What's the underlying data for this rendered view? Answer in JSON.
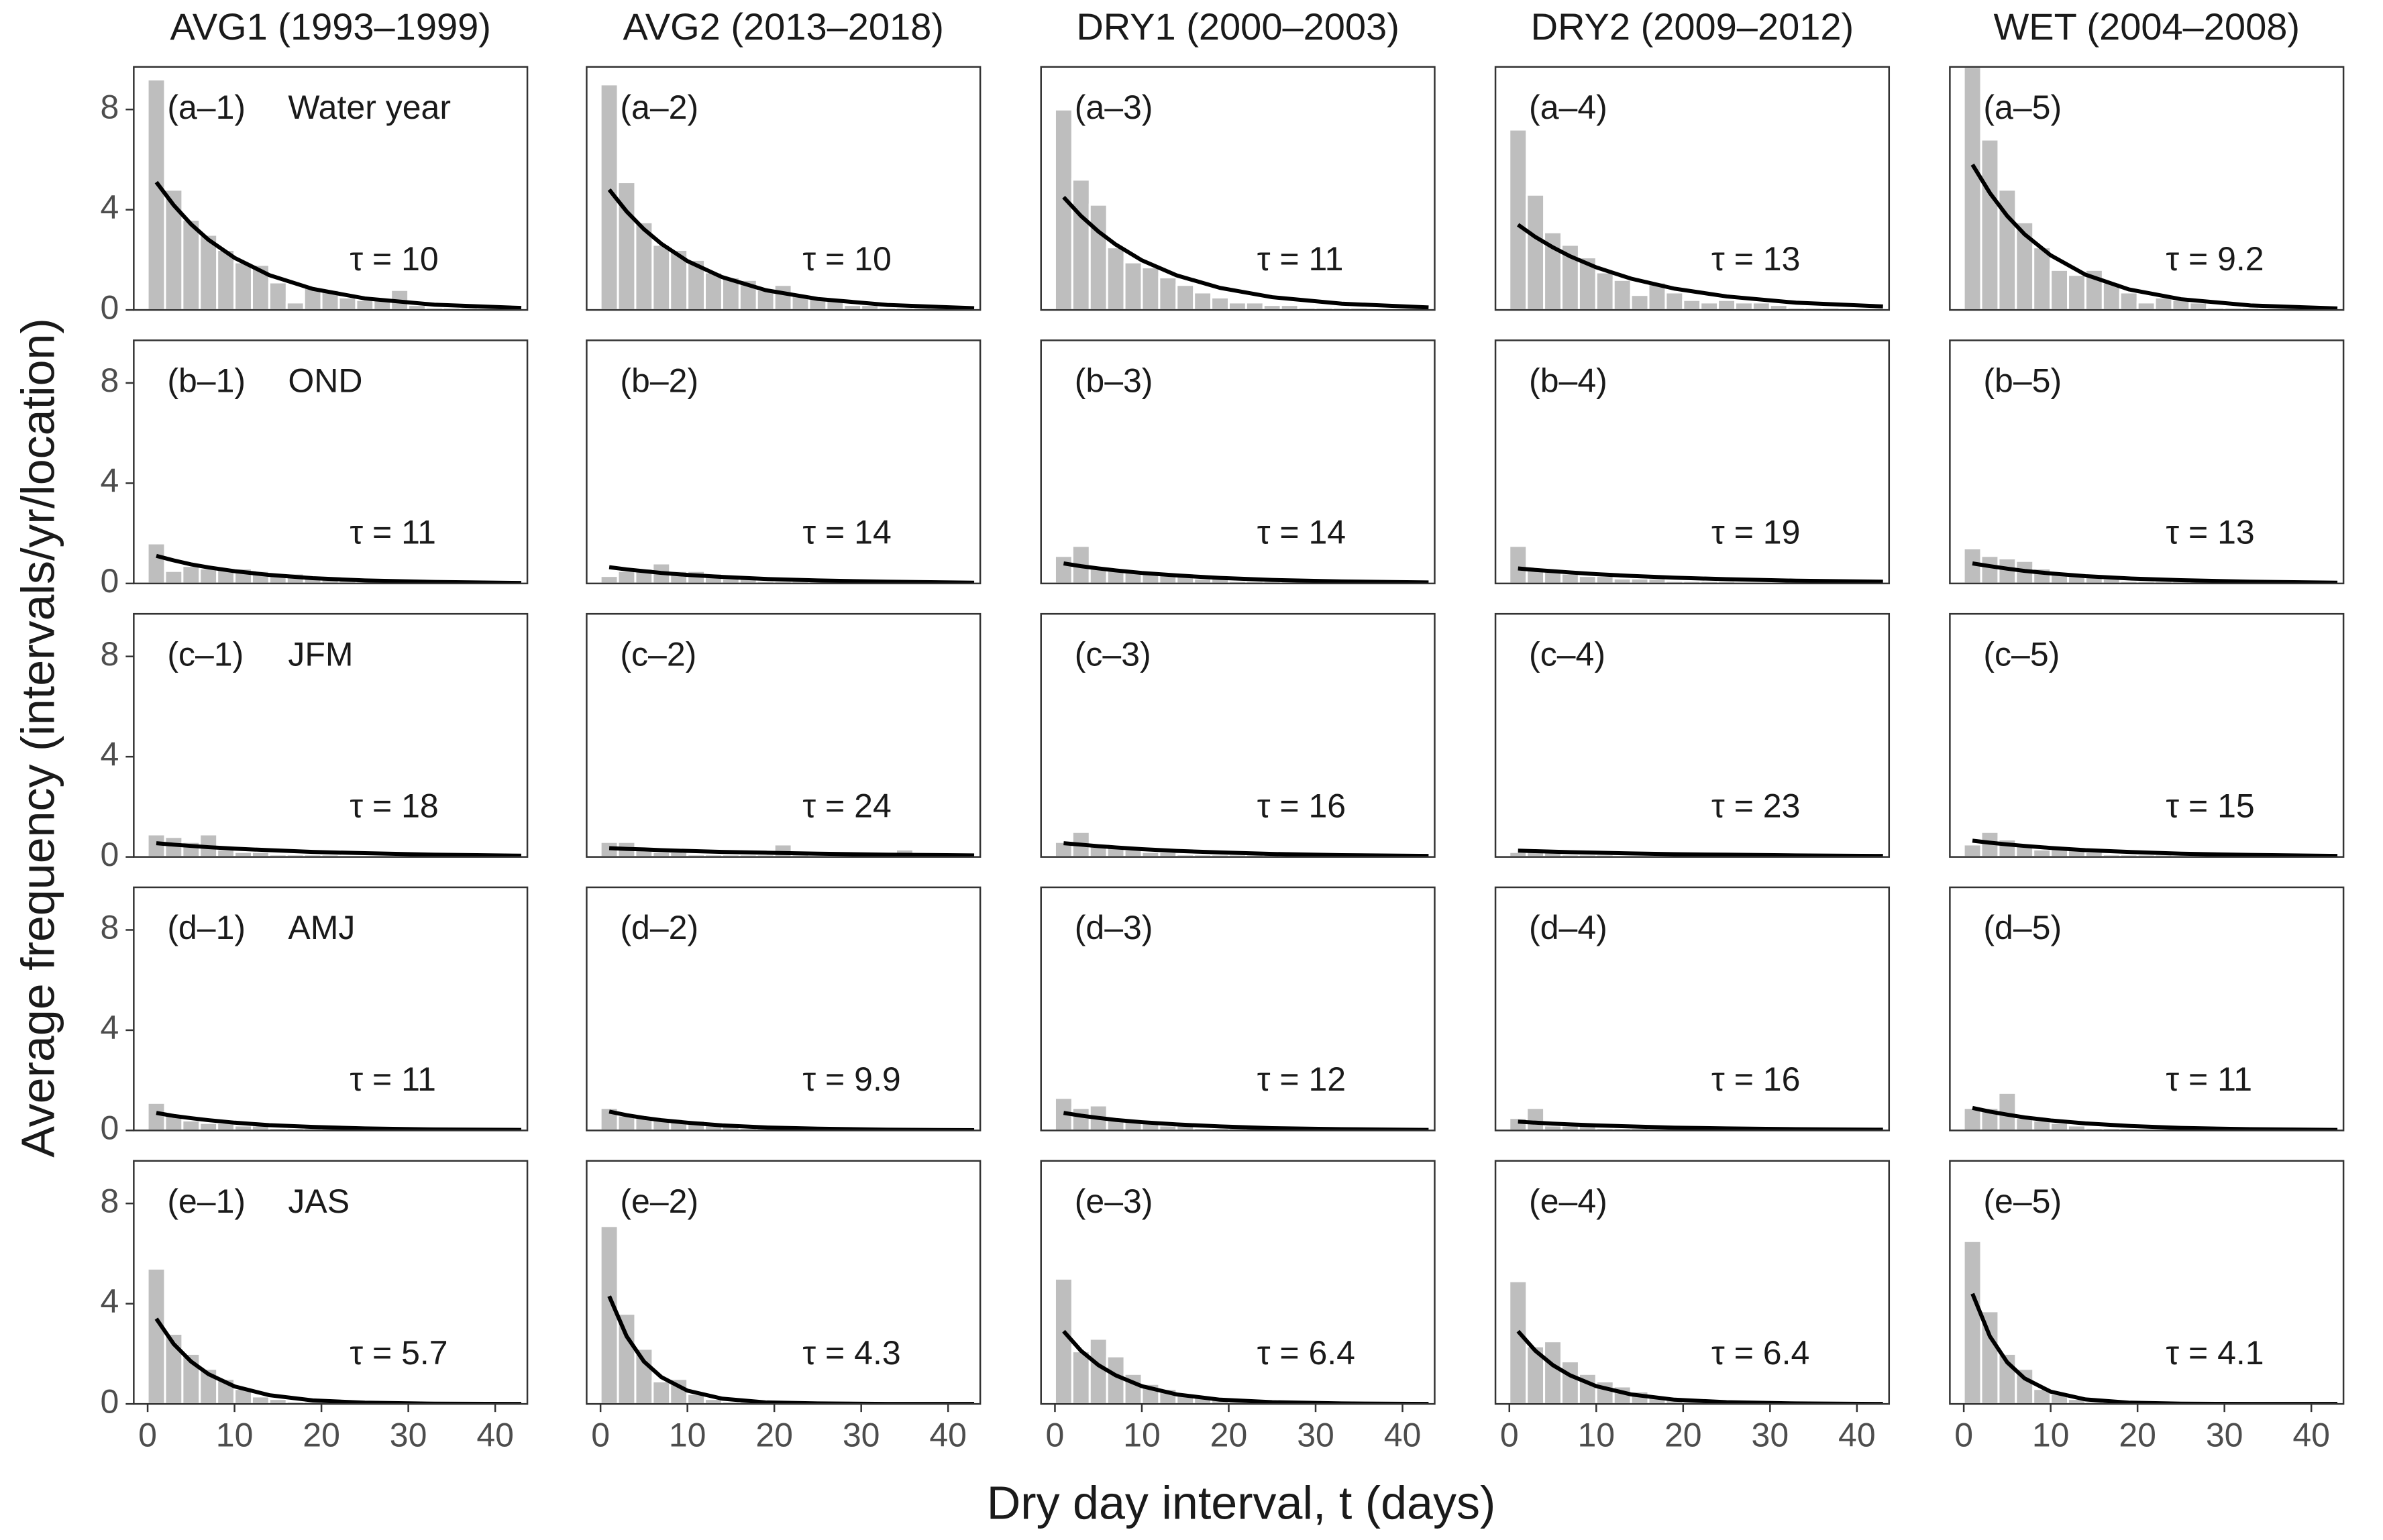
{
  "chart_data": {
    "type": "histogram",
    "x_label": "Dry day interval, t (days)",
    "y_label": "Average frequency (intervals/yr/location)",
    "columns": [
      "AVG1 (1993–1999)",
      "AVG2 (2013–2018)",
      "DRY1 (2000–2003)",
      "DRY2 (2009–2012)",
      "WET (2004–2008)"
    ],
    "xlim": [
      -1.6,
      43.7
    ],
    "ylim": [
      0,
      9.7
    ],
    "xticks": [
      0,
      10,
      20,
      30,
      40
    ],
    "yticks": [
      0,
      4,
      8
    ],
    "bar_color": "#bebebe",
    "line_color": "#000000",
    "bins": [
      0,
      2,
      4,
      6,
      8,
      10,
      12,
      14,
      16,
      18,
      20,
      22,
      24,
      26,
      28,
      30,
      32,
      34,
      36,
      38,
      40,
      42
    ],
    "fit_x": [
      1,
      3,
      5,
      7,
      10,
      14,
      19,
      25,
      33,
      43
    ],
    "rows": [
      {
        "name": "Water year",
        "panels": [
          {
            "label": "(a–1)",
            "tau_label": "τ = 10",
            "counts": [
              9.2,
              4.8,
              3.6,
              3.0,
              2.4,
              1.9,
              1.8,
              1.1,
              0.3,
              0.9,
              0.8,
              0.5,
              0.4,
              0.4,
              0.8,
              0.2,
              0.1,
              0.1,
              0.1,
              0,
              0
            ],
            "fit": [
              5.1,
              4.18,
              3.42,
              2.8,
              2.08,
              1.39,
              0.84,
              0.46,
              0.21,
              0.08
            ]
          },
          {
            "label": "(a–2)",
            "tau_label": "τ = 10",
            "counts": [
              9.0,
              5.1,
              3.5,
              2.6,
              2.4,
              2.0,
              1.5,
              1.3,
              1.2,
              0.8,
              1.0,
              0.6,
              0.5,
              0.4,
              0.2,
              0.2,
              0.1,
              0.1,
              0.1,
              0,
              0
            ],
            "fit": [
              4.8,
              3.93,
              3.22,
              2.64,
              1.95,
              1.31,
              0.79,
              0.44,
              0.2,
              0.07
            ]
          },
          {
            "label": "(a–3)",
            "tau_label": "τ = 11",
            "counts": [
              8.0,
              5.2,
              4.2,
              2.5,
              1.9,
              1.7,
              1.3,
              1.0,
              0.7,
              0.5,
              0.3,
              0.3,
              0.2,
              0.2,
              0.1,
              0.1,
              0.1,
              0.1,
              0,
              0,
              0
            ],
            "fit": [
              4.5,
              3.75,
              3.13,
              2.61,
              1.98,
              1.38,
              0.88,
              0.51,
              0.25,
              0.1
            ]
          },
          {
            "label": "(a–4)",
            "tau_label": "τ = 13",
            "counts": [
              7.2,
              4.6,
              3.1,
              2.6,
              2.1,
              1.5,
              1.2,
              0.6,
              1.1,
              0.7,
              0.4,
              0.3,
              0.4,
              0.3,
              0.3,
              0.2,
              0.1,
              0.1,
              0.1,
              0,
              0
            ],
            "fit": [
              3.4,
              2.91,
              2.5,
              2.14,
              1.7,
              1.25,
              0.85,
              0.54,
              0.29,
              0.14
            ]
          },
          {
            "label": "(a–5)",
            "tau_label": "τ = 9.2",
            "counts": [
              9.7,
              6.8,
              4.8,
              3.5,
              2.5,
              1.6,
              1.4,
              1.6,
              1.1,
              0.7,
              0.3,
              0.5,
              0.4,
              0.3,
              0.1,
              0.1,
              0.1,
              0,
              0,
              0,
              0
            ],
            "fit": [
              5.8,
              4.67,
              3.75,
              3.02,
              2.18,
              1.41,
              0.82,
              0.43,
              0.18,
              0.06
            ]
          }
        ]
      },
      {
        "name": "OND",
        "panels": [
          {
            "label": "(b–1)",
            "tau_label": "τ = 11",
            "counts": [
              1.6,
              0.5,
              0.7,
              0.6,
              0.6,
              0.6,
              0.5,
              0.4,
              0.4,
              0.3,
              0.2,
              0.2,
              0.2,
              0.1,
              0.1,
              0.1,
              0,
              0,
              0,
              0,
              0
            ],
            "fit": [
              1.1,
              0.92,
              0.76,
              0.64,
              0.49,
              0.34,
              0.21,
              0.12,
              0.06,
              0.02
            ]
          },
          {
            "label": "(b–2)",
            "tau_label": "τ = 14",
            "counts": [
              0.3,
              0.5,
              0.6,
              0.8,
              0.5,
              0.5,
              0.4,
              0.2,
              0.2,
              0.1,
              0.1,
              0.1,
              0.1,
              0,
              0,
              0,
              0,
              0,
              0,
              0,
              0
            ],
            "fit": [
              0.65,
              0.56,
              0.49,
              0.42,
              0.34,
              0.26,
              0.18,
              0.12,
              0.07,
              0.03
            ]
          },
          {
            "label": "(b–3)",
            "tau_label": "τ = 14",
            "counts": [
              1.1,
              1.5,
              0.6,
              0.5,
              0.5,
              0.4,
              0.4,
              0.3,
              0.2,
              0.2,
              0.1,
              0.1,
              0.1,
              0.1,
              0,
              0,
              0,
              0,
              0,
              0,
              0
            ],
            "fit": [
              0.8,
              0.69,
              0.6,
              0.52,
              0.42,
              0.32,
              0.22,
              0.14,
              0.08,
              0.04
            ]
          },
          {
            "label": "(b–4)",
            "tau_label": "τ = 19",
            "counts": [
              1.5,
              0.6,
              0.5,
              0.4,
              0.3,
              0.3,
              0.2,
              0.2,
              0.2,
              0.1,
              0.1,
              0.1,
              0.1,
              0,
              0,
              0,
              0,
              0,
              0,
              0,
              0
            ],
            "fit": [
              0.6,
              0.54,
              0.49,
              0.44,
              0.37,
              0.3,
              0.23,
              0.17,
              0.11,
              0.07
            ]
          },
          {
            "label": "(b–5)",
            "tau_label": "τ = 13",
            "counts": [
              1.4,
              1.1,
              1.0,
              0.9,
              0.6,
              0.4,
              0.3,
              0.3,
              0.2,
              0.1,
              0.1,
              0.1,
              0.1,
              0.1,
              0.2,
              0,
              0,
              0,
              0,
              0,
              0
            ],
            "fit": [
              0.8,
              0.69,
              0.59,
              0.5,
              0.4,
              0.29,
              0.2,
              0.13,
              0.07,
              0.03
            ]
          }
        ]
      },
      {
        "name": "JFM",
        "panels": [
          {
            "label": "(c–1)",
            "tau_label": "τ = 18",
            "counts": [
              0.9,
              0.8,
              0.6,
              0.9,
              0.3,
              0.2,
              0.2,
              0.1,
              0.1,
              0.1,
              0.1,
              0,
              0,
              0,
              0,
              0,
              0,
              0,
              0,
              0,
              0
            ],
            "fit": [
              0.55,
              0.49,
              0.44,
              0.39,
              0.33,
              0.27,
              0.2,
              0.15,
              0.09,
              0.05
            ]
          },
          {
            "label": "(c–2)",
            "tau_label": "τ = 24",
            "counts": [
              0.6,
              0.6,
              0.3,
              0.2,
              0.2,
              0.1,
              0.1,
              0.1,
              0.1,
              0.1,
              0.5,
              0.1,
              0,
              0,
              0,
              0,
              0,
              0.3,
              0,
              0,
              0
            ],
            "fit": [
              0.35,
              0.32,
              0.3,
              0.27,
              0.24,
              0.2,
              0.17,
              0.13,
              0.09,
              0.06
            ]
          },
          {
            "label": "(c–3)",
            "tau_label": "τ = 16",
            "counts": [
              0.6,
              1.0,
              0.5,
              0.4,
              0.3,
              0.2,
              0.2,
              0.1,
              0.1,
              0.1,
              0.1,
              0.1,
              0.1,
              0.2,
              0,
              0,
              0,
              0,
              0,
              0,
              0
            ],
            "fit": [
              0.55,
              0.49,
              0.43,
              0.38,
              0.31,
              0.24,
              0.18,
              0.12,
              0.07,
              0.04
            ]
          },
          {
            "label": "(c–4)",
            "tau_label": "τ = 23",
            "counts": [
              0.2,
              0.3,
              0.3,
              0.1,
              0.1,
              0.1,
              0,
              0,
              0,
              0,
              0,
              0,
              0,
              0,
              0,
              0,
              0,
              0,
              0,
              0,
              0
            ],
            "fit": [
              0.25,
              0.23,
              0.21,
              0.19,
              0.17,
              0.14,
              0.11,
              0.09,
              0.06,
              0.04
            ]
          },
          {
            "label": "(c–5)",
            "tau_label": "τ = 15",
            "counts": [
              0.5,
              1.0,
              0.7,
              0.5,
              0.3,
              0.4,
              0.3,
              0.2,
              0.1,
              0.1,
              0.1,
              0.1,
              0,
              0,
              0,
              0,
              0,
              0,
              0,
              0,
              0
            ],
            "fit": [
              0.65,
              0.57,
              0.5,
              0.44,
              0.36,
              0.27,
              0.2,
              0.13,
              0.08,
              0.04
            ]
          }
        ]
      },
      {
        "name": "AMJ",
        "panels": [
          {
            "label": "(d–1)",
            "tau_label": "τ = 11",
            "counts": [
              1.1,
              0.6,
              0.4,
              0.3,
              0.3,
              0.2,
              0.2,
              0.1,
              0.1,
              0.1,
              0.1,
              0,
              0,
              0,
              0,
              0,
              0,
              0,
              0,
              0,
              0
            ],
            "fit": [
              0.7,
              0.58,
              0.49,
              0.41,
              0.31,
              0.21,
              0.14,
              0.08,
              0.04,
              0.02
            ]
          },
          {
            "label": "(d–2)",
            "tau_label": "τ = 9.9",
            "counts": [
              0.9,
              0.6,
              0.5,
              0.5,
              0.4,
              0.4,
              0.3,
              0.2,
              0.1,
              0.1,
              0,
              0,
              0,
              0,
              0,
              0,
              0,
              0,
              0,
              0,
              0
            ],
            "fit": [
              0.75,
              0.61,
              0.5,
              0.41,
              0.31,
              0.2,
              0.12,
              0.07,
              0.03,
              0.01
            ]
          },
          {
            "label": "(d–3)",
            "tau_label": "τ = 12",
            "counts": [
              1.3,
              0.9,
              1.0,
              0.4,
              0.4,
              0.3,
              0.2,
              0.2,
              0.1,
              0.1,
              0.1,
              0.1,
              0.1,
              0,
              0,
              0,
              0.1,
              0,
              0,
              0,
              0
            ],
            "fit": [
              0.7,
              0.59,
              0.5,
              0.42,
              0.33,
              0.24,
              0.16,
              0.09,
              0.05,
              0.02
            ]
          },
          {
            "label": "(d–4)",
            "tau_label": "τ = 16",
            "counts": [
              0.5,
              0.9,
              0.2,
              0.2,
              0.2,
              0.1,
              0.1,
              0.1,
              0,
              0,
              0,
              0,
              0,
              0,
              0,
              0,
              0,
              0,
              0,
              0,
              0
            ],
            "fit": [
              0.35,
              0.31,
              0.27,
              0.24,
              0.2,
              0.16,
              0.11,
              0.08,
              0.05,
              0.03
            ]
          },
          {
            "label": "(d–5)",
            "tau_label": "τ = 11",
            "counts": [
              0.9,
              0.9,
              1.5,
              0.5,
              0.4,
              0.3,
              0.2,
              0.1,
              0.1,
              0.1,
              0,
              0,
              0,
              0,
              0,
              0,
              0,
              0,
              0,
              0,
              0
            ],
            "fit": [
              0.9,
              0.75,
              0.63,
              0.52,
              0.4,
              0.28,
              0.18,
              0.1,
              0.05,
              0.02
            ]
          }
        ]
      },
      {
        "name": "JAS",
        "panels": [
          {
            "label": "(e–1)",
            "tau_label": "τ = 5.7",
            "counts": [
              5.4,
              2.8,
              2.0,
              1.4,
              1.0,
              0.6,
              0.3,
              0.2,
              0.1,
              0.1,
              0.1,
              0,
              0,
              0,
              0.1,
              0,
              0,
              0,
              0,
              0,
              0
            ],
            "fit": [
              3.4,
              2.39,
              1.69,
              1.19,
              0.7,
              0.35,
              0.14,
              0.05,
              0.01,
              0
            ]
          },
          {
            "label": "(e–2)",
            "tau_label": "τ = 4.3",
            "counts": [
              7.1,
              3.6,
              2.2,
              0.9,
              1.0,
              0.4,
              0.2,
              0.1,
              0.1,
              0,
              0,
              0,
              0,
              0,
              0,
              0,
              0,
              0,
              0,
              0,
              0
            ],
            "fit": [
              4.3,
              2.7,
              1.69,
              1.07,
              0.53,
              0.21,
              0.06,
              0.02,
              0,
              0
            ]
          },
          {
            "label": "(e–3)",
            "tau_label": "τ = 6.4",
            "counts": [
              5.0,
              2.1,
              2.6,
              1.9,
              1.2,
              0.8,
              0.6,
              0.4,
              0.3,
              0.2,
              0.1,
              0.1,
              0,
              0,
              0,
              0,
              0,
              0,
              0,
              0,
              0
            ],
            "fit": [
              2.9,
              2.12,
              1.55,
              1.14,
              0.71,
              0.38,
              0.17,
              0.07,
              0.02,
              0
            ]
          },
          {
            "label": "(e–4)",
            "tau_label": "τ = 6.4",
            "counts": [
              4.9,
              2.3,
              2.5,
              1.7,
              1.2,
              0.9,
              0.7,
              0.5,
              0.3,
              0.2,
              0.1,
              0,
              0,
              0,
              0,
              0,
              0,
              0,
              0,
              0,
              0
            ],
            "fit": [
              2.9,
              2.12,
              1.55,
              1.14,
              0.71,
              0.38,
              0.17,
              0.07,
              0.02,
              0
            ]
          },
          {
            "label": "(e–5)",
            "tau_label": "τ = 4.1",
            "counts": [
              6.5,
              3.7,
              2.0,
              1.4,
              0.6,
              0.4,
              0.2,
              0.1,
              0.1,
              0,
              0,
              0,
              0,
              0,
              0,
              0,
              0,
              0,
              0,
              0,
              0
            ],
            "fit": [
              4.4,
              2.7,
              1.66,
              1.02,
              0.49,
              0.18,
              0.05,
              0.01,
              0,
              0
            ]
          }
        ]
      }
    ]
  }
}
